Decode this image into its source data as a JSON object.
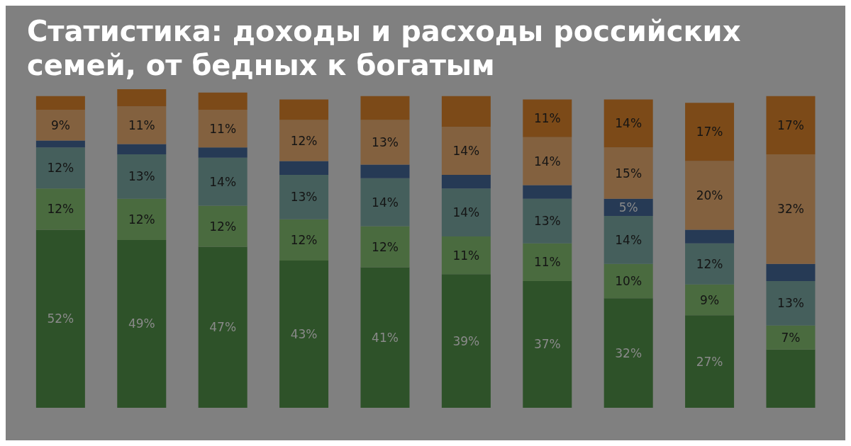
{
  "chart_data": {
    "type": "bar",
    "title": "Статистика: доходы и расходы российских семей, от бедных к богатым",
    "stacked": true,
    "categories": [
      null,
      null,
      null,
      null,
      null,
      null,
      null,
      null,
      null,
      null
    ],
    "series": [
      {
        "color": "#2e5229",
        "values": [
          52,
          49,
          47,
          43,
          41,
          39,
          37,
          32,
          27,
          17
        ],
        "value_labels": [
          "52%",
          "49%",
          "47%",
          "43%",
          "41%",
          "39%",
          "37%",
          "32%",
          "27%",
          null
        ]
      },
      {
        "color": "#4a6b3f",
        "values": [
          12,
          12,
          12,
          12,
          12,
          11,
          11,
          10,
          9,
          7
        ],
        "value_labels": [
          "12%",
          "12%",
          "12%",
          "12%",
          "12%",
          "11%",
          "11%",
          "10%",
          "9%",
          "7%"
        ]
      },
      {
        "color": "#455f5c",
        "values": [
          12,
          13,
          14,
          13,
          14,
          14,
          13,
          14,
          12,
          13
        ],
        "value_labels": [
          "12%",
          "13%",
          "14%",
          "13%",
          "14%",
          "14%",
          "13%",
          "14%",
          "12%",
          "13%"
        ]
      },
      {
        "color": "#263a55",
        "values": [
          2,
          3,
          3,
          4,
          4,
          4,
          4,
          5,
          4,
          5
        ],
        "value_labels": [
          null,
          null,
          null,
          null,
          null,
          null,
          null,
          "5%",
          null,
          null
        ]
      },
      {
        "color": "#83613f",
        "values": [
          9,
          11,
          11,
          12,
          13,
          14,
          14,
          15,
          20,
          32
        ],
        "value_labels": [
          "9%",
          "11%",
          "11%",
          "12%",
          "13%",
          "14%",
          "14%",
          "15%",
          "20%",
          "32%"
        ]
      },
      {
        "color": "#7c4a18",
        "values": [
          4,
          5,
          5,
          6,
          7,
          9,
          11,
          14,
          17,
          17
        ],
        "value_labels": [
          null,
          null,
          null,
          null,
          null,
          null,
          "11%",
          "14%",
          "17%",
          "17%"
        ]
      }
    ]
  }
}
